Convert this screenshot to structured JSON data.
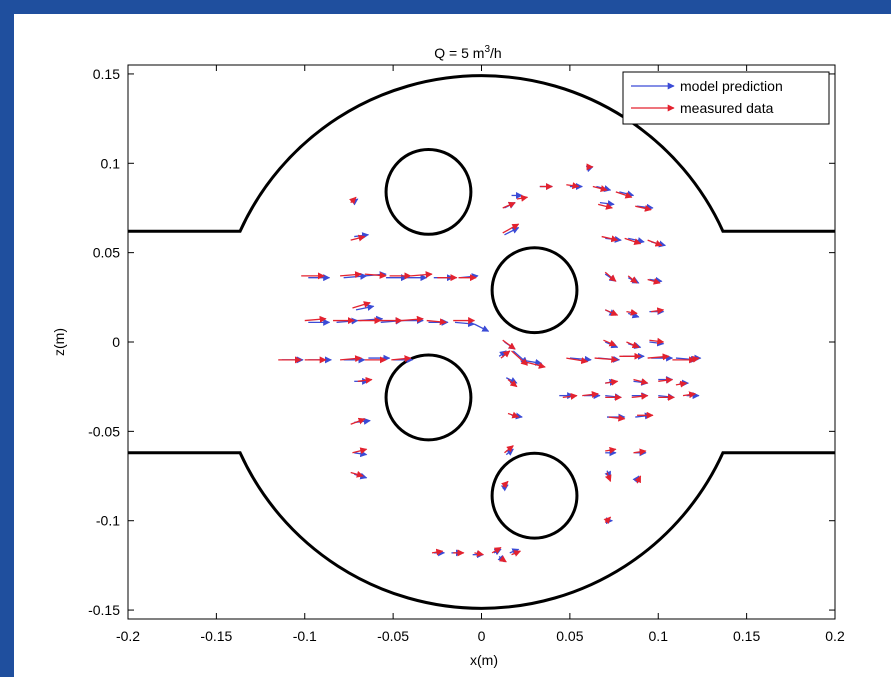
{
  "colors": {
    "frame": "#1f4f9e",
    "model": "#3b4bd6",
    "measured": "#e3222f",
    "geometry": "#000000"
  },
  "chart_data": {
    "type": "quiver",
    "title": "Q = 5 m³/h",
    "title_parts": {
      "prefix": "Q = 5 m",
      "superscript": "3",
      "suffix": "/h"
    },
    "xlabel": "x(m)",
    "ylabel": "z(m)",
    "xlim": [
      -0.2,
      0.2
    ],
    "ylim": [
      -0.155,
      0.155
    ],
    "xticks": [
      -0.2,
      -0.15,
      -0.1,
      -0.05,
      0,
      0.05,
      0.1,
      0.15,
      0.2
    ],
    "xtick_labels": [
      "-0.2",
      "-0.15",
      "-0.1",
      "-0.05",
      "0",
      "0.05",
      "0.1",
      "0.15",
      "0.2"
    ],
    "yticks": [
      0.15,
      0.1,
      0.05,
      0,
      -0.05,
      -0.1,
      -0.15
    ],
    "ytick_labels": [
      "0.15",
      "0.1",
      "0.05",
      "0",
      "-0.05",
      "-0.1",
      "-0.15"
    ],
    "grid": false,
    "legend": {
      "position": "top-right",
      "entries": [
        "model prediction",
        "measured data"
      ]
    },
    "geometry": {
      "chamber_radius": 0.15,
      "pipe_half_width": 0.062,
      "circles": [
        {
          "cx": -0.03,
          "cz": 0.084,
          "r": 0.024
        },
        {
          "cx": 0.03,
          "cz": 0.029,
          "r": 0.024
        },
        {
          "cx": -0.03,
          "cz": -0.031,
          "r": 0.024
        },
        {
          "cx": 0.03,
          "cz": -0.086,
          "r": 0.024
        }
      ]
    },
    "series": [
      {
        "name": "model prediction",
        "arrows": [
          [
            -0.098,
            0.036,
            0.012,
            0
          ],
          [
            -0.078,
            0.036,
            0.013,
            0.001
          ],
          [
            -0.066,
            0.037,
            0.012,
            0.001
          ],
          [
            -0.054,
            0.036,
            0.012,
            0
          ],
          [
            -0.042,
            0.036,
            0.011,
            0
          ],
          [
            -0.027,
            0.036,
            0.011,
            0
          ],
          [
            -0.012,
            0.036,
            0.01,
            0.001
          ],
          [
            -0.098,
            0.011,
            0.012,
            0
          ],
          [
            -0.082,
            0.011,
            0.012,
            0.001
          ],
          [
            -0.069,
            0.012,
            0.013,
            0.001
          ],
          [
            -0.057,
            0.011,
            0.012,
            0.001
          ],
          [
            -0.045,
            0.012,
            0.012,
            0
          ],
          [
            -0.03,
            0.011,
            0.011,
            0
          ],
          [
            -0.015,
            0.011,
            0.011,
            -0.001
          ],
          [
            -0.004,
            0.01,
            0.008,
            -0.004
          ],
          [
            -0.113,
            -0.01,
            0.012,
            0
          ],
          [
            -0.098,
            -0.01,
            0.013,
            0
          ],
          [
            -0.078,
            -0.01,
            0.012,
            0
          ],
          [
            -0.064,
            -0.009,
            0.012,
            0
          ],
          [
            -0.05,
            -0.01,
            0.011,
            0
          ],
          [
            -0.071,
            0.018,
            0.01,
            0.002
          ],
          [
            -0.072,
            -0.022,
            0.008,
            0
          ],
          [
            -0.072,
            0.059,
            0.008,
            0.001
          ],
          [
            -0.073,
            0.078,
            0.003,
            0.002
          ],
          [
            -0.072,
            -0.045,
            0.009,
            0.001
          ],
          [
            -0.072,
            -0.062,
            0.007,
            -0.001
          ],
          [
            -0.072,
            -0.074,
            0.007,
            -0.002
          ],
          [
            0.013,
            0.075,
            0.006,
            0.003
          ],
          [
            0.017,
            0.082,
            0.006,
            0
          ],
          [
            0.033,
            0.087,
            0.007,
            0
          ],
          [
            0.05,
            0.087,
            0.007,
            0
          ],
          [
            0.065,
            0.087,
            0.008,
            -0.002
          ],
          [
            0.078,
            0.084,
            0.008,
            -0.002
          ],
          [
            0.067,
            0.078,
            0.008,
            -0.001
          ],
          [
            0.088,
            0.076,
            0.009,
            -0.001
          ],
          [
            0.013,
            0.06,
            0.008,
            0.004
          ],
          [
            0.07,
            0.058,
            0.009,
            -0.001
          ],
          [
            0.083,
            0.058,
            0.009,
            -0.002
          ],
          [
            0.096,
            0.056,
            0.008,
            -0.002
          ],
          [
            0.07,
            0.038,
            0.006,
            -0.004
          ],
          [
            0.083,
            0.036,
            0.006,
            -0.003
          ],
          [
            0.095,
            0.035,
            0.007,
            -0.001
          ],
          [
            0.07,
            0.018,
            0.006,
            -0.003
          ],
          [
            0.083,
            0.016,
            0.006,
            -0.002
          ],
          [
            0.095,
            0.017,
            0.008,
            0
          ],
          [
            0.013,
            0.0,
            0.006,
            -0.004
          ],
          [
            0.07,
            0.0,
            0.007,
            -0.003
          ],
          [
            0.083,
            -0.001,
            0.007,
            -0.002
          ],
          [
            0.095,
            0.0,
            0.008,
            -0.001
          ],
          [
            0.018,
            -0.005,
            0.008,
            -0.007
          ],
          [
            0.022,
            -0.01,
            0.012,
            -0.002
          ],
          [
            0.05,
            -0.009,
            0.012,
            -0.001
          ],
          [
            0.066,
            -0.009,
            0.012,
            -0.001
          ],
          [
            0.08,
            -0.008,
            0.012,
            0
          ],
          [
            0.096,
            -0.009,
            0.012,
            0
          ],
          [
            0.11,
            -0.009,
            0.012,
            -0.001
          ],
          [
            0.12,
            -0.009,
            0.004,
            0
          ],
          [
            0.014,
            -0.02,
            0.006,
            -0.003
          ],
          [
            0.07,
            -0.023,
            0.006,
            0.001
          ],
          [
            0.086,
            -0.022,
            0.008,
            -0.001
          ],
          [
            0.1,
            -0.021,
            0.008,
            0
          ],
          [
            0.112,
            -0.023,
            0.005,
            0
          ],
          [
            0.044,
            -0.03,
            0.008,
            0
          ],
          [
            0.058,
            -0.03,
            0.009,
            0
          ],
          [
            0.07,
            -0.03,
            0.009,
            -0.001
          ],
          [
            0.085,
            -0.03,
            0.009,
            0
          ],
          [
            0.1,
            -0.03,
            0.009,
            -0.001
          ],
          [
            0.116,
            -0.03,
            0.007,
            0
          ],
          [
            0.017,
            -0.041,
            0.006,
            -0.001
          ],
          [
            0.071,
            -0.042,
            0.01,
            0
          ],
          [
            0.087,
            -0.042,
            0.009,
            0.001
          ],
          [
            0.014,
            -0.063,
            0.004,
            0.003
          ],
          [
            0.07,
            -0.062,
            0.006,
            0
          ],
          [
            0.087,
            -0.062,
            0.006,
            0
          ],
          [
            0.071,
            -0.072,
            0.002,
            -0.004
          ],
          [
            0.087,
            -0.078,
            0.002,
            0.003
          ],
          [
            0.071,
            -0.1,
            0.003,
            0
          ],
          [
            -0.027,
            -0.118,
            0.006,
            0
          ],
          [
            -0.017,
            -0.118,
            0.006,
            0
          ],
          [
            -0.005,
            -0.119,
            0.006,
            0
          ],
          [
            0.007,
            -0.118,
            0.004,
            0.002
          ],
          [
            0.016,
            -0.118,
            0.005,
            0.002
          ],
          [
            0.01,
            -0.12,
            0.003,
            -0.003
          ],
          [
            0.06,
            0.097,
            0.003,
            0.001
          ],
          [
            0.01,
            -0.008,
            0.004,
            0.003
          ],
          [
            0.012,
            -0.082,
            0.003,
            0.002
          ]
        ]
      },
      {
        "name": "measured data",
        "arrows": [
          [
            -0.102,
            0.037,
            0.013,
            0
          ],
          [
            -0.08,
            0.037,
            0.012,
            0.001
          ],
          [
            -0.066,
            0.038,
            0.012,
            -0.001
          ],
          [
            -0.052,
            0.037,
            0.012,
            0
          ],
          [
            -0.04,
            0.037,
            0.012,
            0.001
          ],
          [
            -0.025,
            0.036,
            0.011,
            0
          ],
          [
            -0.013,
            0.036,
            0.01,
            0
          ],
          [
            -0.1,
            0.012,
            0.012,
            0.001
          ],
          [
            -0.084,
            0.012,
            0.012,
            0
          ],
          [
            -0.07,
            0.012,
            0.013,
            0
          ],
          [
            -0.058,
            0.012,
            0.013,
            0
          ],
          [
            -0.045,
            0.012,
            0.012,
            0.001
          ],
          [
            -0.031,
            0.012,
            0.011,
            -0.001
          ],
          [
            -0.016,
            0.012,
            0.012,
            0
          ],
          [
            -0.115,
            -0.01,
            0.013,
            0
          ],
          [
            -0.1,
            -0.01,
            0.012,
            0
          ],
          [
            -0.08,
            -0.01,
            0.012,
            0.001
          ],
          [
            -0.066,
            -0.01,
            0.012,
            0
          ],
          [
            -0.051,
            -0.01,
            0.011,
            0.001
          ],
          [
            -0.073,
            0.019,
            0.01,
            0.003
          ],
          [
            -0.07,
            -0.022,
            0.008,
            0.001
          ],
          [
            -0.074,
            0.057,
            0.008,
            0.002
          ],
          [
            -0.074,
            0.078,
            0.003,
            0.003
          ],
          [
            -0.074,
            -0.046,
            0.008,
            0.003
          ],
          [
            -0.073,
            -0.062,
            0.008,
            0.002
          ],
          [
            -0.074,
            -0.073,
            0.007,
            -0.002
          ],
          [
            0.012,
            0.075,
            0.007,
            0.003
          ],
          [
            0.02,
            0.08,
            0.006,
            0.001
          ],
          [
            0.033,
            0.087,
            0.007,
            0
          ],
          [
            0.048,
            0.088,
            0.007,
            -0.001
          ],
          [
            0.063,
            0.087,
            0.008,
            -0.002
          ],
          [
            0.076,
            0.084,
            0.009,
            -0.003
          ],
          [
            0.066,
            0.077,
            0.008,
            -0.002
          ],
          [
            0.087,
            0.076,
            0.009,
            -0.002
          ],
          [
            0.012,
            0.061,
            0.009,
            0.005
          ],
          [
            0.068,
            0.059,
            0.009,
            -0.002
          ],
          [
            0.081,
            0.058,
            0.009,
            -0.003
          ],
          [
            0.094,
            0.057,
            0.008,
            -0.003
          ],
          [
            0.07,
            0.039,
            0.006,
            -0.005
          ],
          [
            0.083,
            0.037,
            0.005,
            -0.004
          ],
          [
            0.094,
            0.035,
            0.007,
            -0.002
          ],
          [
            0.07,
            0.018,
            0.007,
            -0.003
          ],
          [
            0.082,
            0.017,
            0.006,
            -0.001
          ],
          [
            0.096,
            0.017,
            0.007,
            0.001
          ],
          [
            0.012,
            0.001,
            0.007,
            -0.005
          ],
          [
            0.069,
            0.001,
            0.007,
            -0.003
          ],
          [
            0.082,
            0.0,
            0.007,
            -0.003
          ],
          [
            0.095,
            0.001,
            0.008,
            -0.001
          ],
          [
            0.017,
            -0.005,
            0.009,
            -0.008
          ],
          [
            0.024,
            -0.011,
            0.012,
            -0.003
          ],
          [
            0.048,
            -0.009,
            0.012,
            -0.002
          ],
          [
            0.064,
            -0.009,
            0.013,
            -0.001
          ],
          [
            0.078,
            -0.008,
            0.012,
            0
          ],
          [
            0.094,
            -0.009,
            0.012,
            0.001
          ],
          [
            0.108,
            -0.01,
            0.013,
            0
          ],
          [
            0.118,
            -0.01,
            0.005,
            0.001
          ],
          [
            0.015,
            -0.021,
            0.005,
            -0.004
          ],
          [
            0.07,
            -0.023,
            0.007,
            0.001
          ],
          [
            0.086,
            -0.021,
            0.008,
            -0.002
          ],
          [
            0.1,
            -0.022,
            0.008,
            0.001
          ],
          [
            0.11,
            -0.024,
            0.006,
            0.001
          ],
          [
            0.046,
            -0.031,
            0.008,
            0.001
          ],
          [
            0.057,
            -0.03,
            0.009,
            0.001
          ],
          [
            0.07,
            -0.031,
            0.009,
            0
          ],
          [
            0.085,
            -0.031,
            0.009,
            0.001
          ],
          [
            0.1,
            -0.031,
            0.009,
            0
          ],
          [
            0.114,
            -0.03,
            0.007,
            0.001
          ],
          [
            0.015,
            -0.04,
            0.006,
            -0.002
          ],
          [
            0.072,
            -0.042,
            0.009,
            -0.001
          ],
          [
            0.088,
            -0.041,
            0.009,
            0
          ],
          [
            0.013,
            -0.062,
            0.005,
            0.004
          ],
          [
            0.07,
            -0.061,
            0.006,
            0.001
          ],
          [
            0.086,
            -0.062,
            0.007,
            0.001
          ],
          [
            0.071,
            -0.073,
            0.002,
            -0.005
          ],
          [
            0.088,
            -0.079,
            0.002,
            0.004
          ],
          [
            0.07,
            -0.101,
            0.003,
            0.003
          ],
          [
            -0.028,
            -0.118,
            0.006,
            0.001
          ],
          [
            -0.016,
            -0.118,
            0.006,
            0
          ],
          [
            -0.004,
            -0.118,
            0.005,
            -0.001
          ],
          [
            0.006,
            -0.118,
            0.005,
            0.003
          ],
          [
            0.017,
            -0.119,
            0.005,
            0.002
          ],
          [
            0.011,
            -0.121,
            0.003,
            -0.002
          ],
          [
            0.06,
            0.098,
            0.003,
            0
          ],
          [
            0.011,
            -0.009,
            0.005,
            0.004
          ],
          [
            0.012,
            -0.081,
            0.003,
            0.003
          ]
        ]
      }
    ]
  }
}
